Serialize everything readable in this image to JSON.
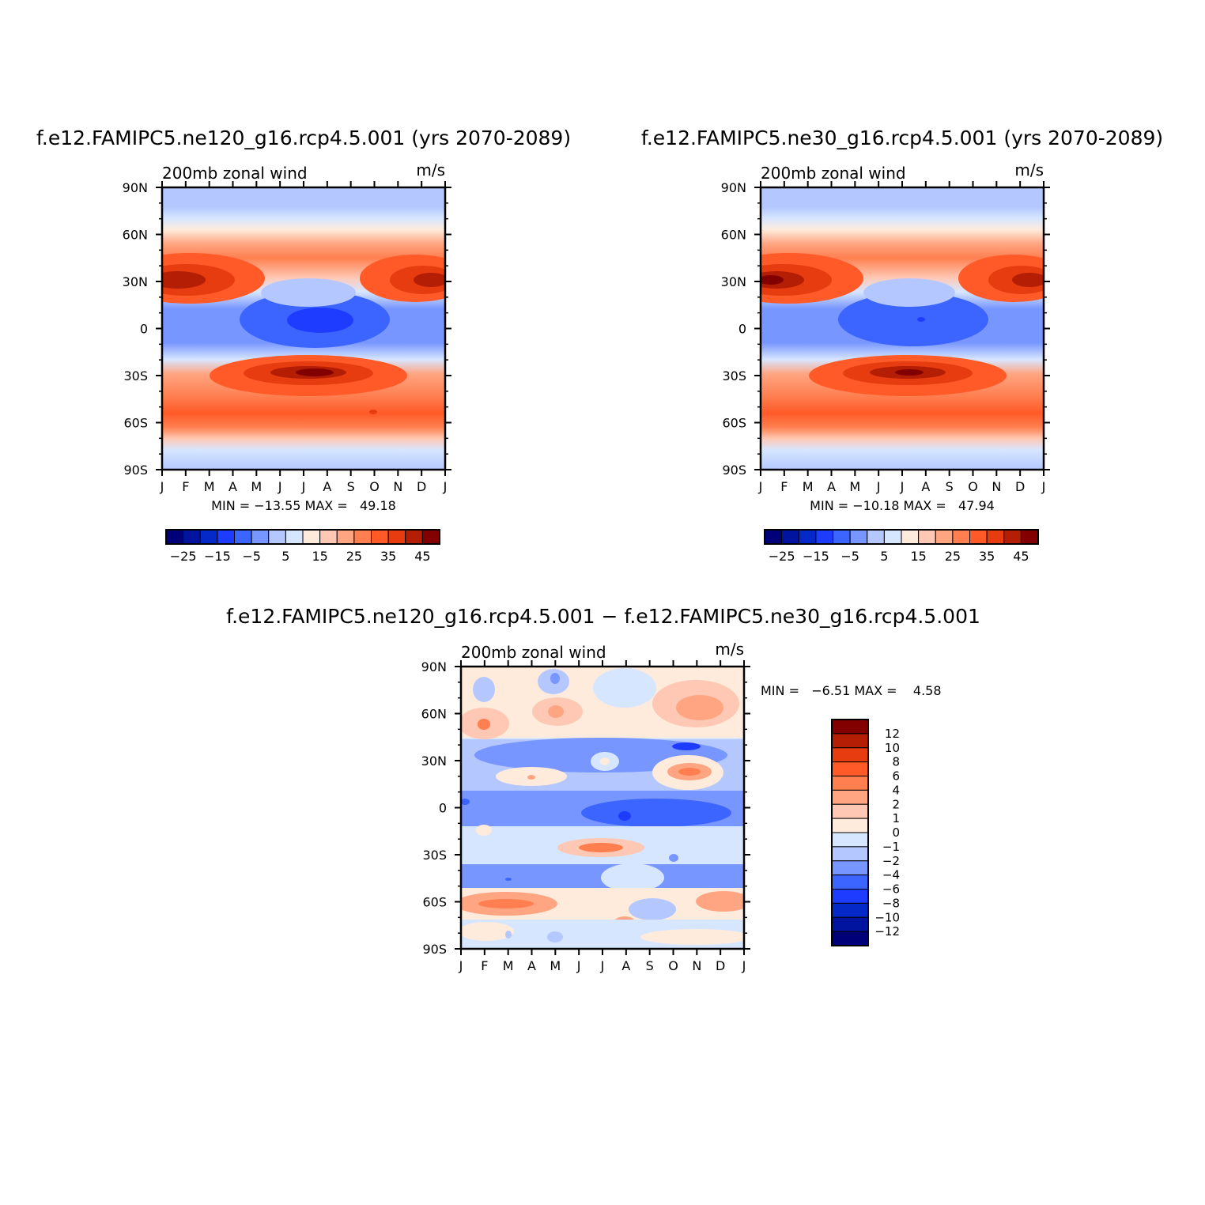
{
  "chart_data": [
    {
      "type": "heatmap",
      "id": "ne120",
      "title": "f.e12.FAMIPC5.ne120_g16.rcp4.5.001 (yrs 2070-2089)",
      "left_label": "200mb zonal wind",
      "right_label": "m/s",
      "x_ticks": [
        "J",
        "F",
        "M",
        "A",
        "M",
        "J",
        "J",
        "A",
        "S",
        "O",
        "N",
        "D",
        "J"
      ],
      "y_ticks": [
        "90N",
        "60N",
        "30N",
        "0",
        "30S",
        "60S",
        "90S"
      ],
      "xlim": [
        0,
        12
      ],
      "ylim": [
        -90,
        90
      ],
      "min_max_label": "MIN = −13.55 MAX =   49.18",
      "colorbar": {
        "orientation": "horizontal",
        "colors": [
          "#000078",
          "#0014a0",
          "#0528c8",
          "#1e3cff",
          "#3c64ff",
          "#7896ff",
          "#b4c8ff",
          "#d7e6ff",
          "#ffebdc",
          "#ffc8b4",
          "#ffa582",
          "#ff7f50",
          "#ff5a28",
          "#e63c0f",
          "#b41e05",
          "#820000"
        ],
        "labels": [
          "−25",
          "−15",
          "−5",
          "5",
          "15",
          "25",
          "35",
          "45"
        ]
      }
    },
    {
      "type": "heatmap",
      "id": "ne30",
      "title": "f.e12.FAMIPC5.ne30_g16.rcp4.5.001 (yrs 2070-2089)",
      "left_label": "200mb zonal wind",
      "right_label": "m/s",
      "x_ticks": [
        "J",
        "F",
        "M",
        "A",
        "M",
        "J",
        "J",
        "A",
        "S",
        "O",
        "N",
        "D",
        "J"
      ],
      "y_ticks": [
        "90N",
        "60N",
        "30N",
        "0",
        "30S",
        "60S",
        "90S"
      ],
      "xlim": [
        0,
        12
      ],
      "ylim": [
        -90,
        90
      ],
      "min_max_label": "MIN = −10.18 MAX =   47.94",
      "colorbar": {
        "orientation": "horizontal",
        "colors": [
          "#000078",
          "#0014a0",
          "#0528c8",
          "#1e3cff",
          "#3c64ff",
          "#7896ff",
          "#b4c8ff",
          "#d7e6ff",
          "#ffebdc",
          "#ffc8b4",
          "#ffa582",
          "#ff7f50",
          "#ff5a28",
          "#e63c0f",
          "#b41e05",
          "#820000"
        ],
        "labels": [
          "−25",
          "−15",
          "−5",
          "5",
          "15",
          "25",
          "35",
          "45"
        ]
      }
    },
    {
      "type": "heatmap",
      "id": "diff",
      "title": "f.e12.FAMIPC5.ne120_g16.rcp4.5.001 − f.e12.FAMIPC5.ne30_g16.rcp4.5.001",
      "left_label": "200mb zonal wind",
      "right_label": "m/s",
      "x_ticks": [
        "J",
        "F",
        "M",
        "A",
        "M",
        "J",
        "J",
        "A",
        "S",
        "O",
        "N",
        "D",
        "J"
      ],
      "y_ticks": [
        "90N",
        "60N",
        "30N",
        "0",
        "30S",
        "60S",
        "90S"
      ],
      "xlim": [
        0,
        12
      ],
      "ylim": [
        -90,
        90
      ],
      "min_max_label": "MIN =   −6.51 MAX =    4.58",
      "colorbar": {
        "orientation": "vertical",
        "colors": [
          "#820000",
          "#b41e05",
          "#e63c0f",
          "#ff5a28",
          "#ff7f50",
          "#ffa582",
          "#ffc8b4",
          "#ffebdc",
          "#d7e6ff",
          "#b4c8ff",
          "#7896ff",
          "#3c64ff",
          "#1e3cff",
          "#0528c8",
          "#0014a0",
          "#000078"
        ],
        "labels": [
          "12",
          "10",
          "8",
          "6",
          "4",
          "2",
          "1",
          "0",
          "−1",
          "−2",
          "−4",
          "−6",
          "−8",
          "−10",
          "−12"
        ]
      }
    }
  ]
}
